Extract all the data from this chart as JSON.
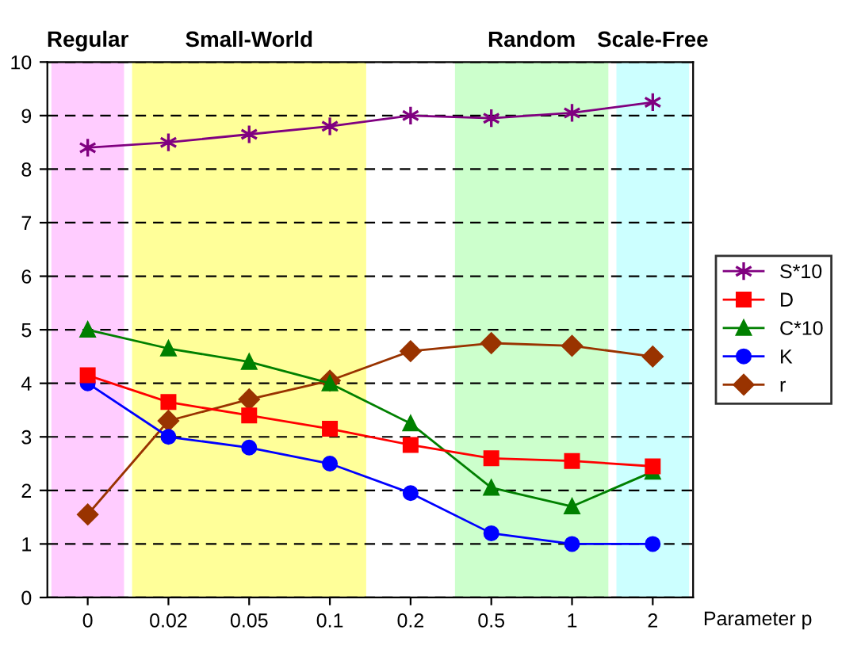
{
  "chart_data": {
    "type": "line",
    "xlabel": "Parameter p",
    "categories": [
      "0",
      "0.02",
      "0.05",
      "0.1",
      "0.2",
      "0.5",
      "1",
      "2"
    ],
    "series": [
      {
        "name": "S*10",
        "color": "#800080",
        "marker": "cross",
        "values": [
          8.4,
          8.5,
          8.65,
          8.8,
          9.0,
          8.95,
          9.05,
          9.25
        ]
      },
      {
        "name": "D",
        "color": "#ff0000",
        "marker": "square",
        "values": [
          4.15,
          3.65,
          3.4,
          3.15,
          2.85,
          2.6,
          2.55,
          2.45
        ]
      },
      {
        "name": "C*10",
        "color": "#008000",
        "marker": "triangle",
        "values": [
          5.0,
          4.65,
          4.4,
          4.0,
          3.25,
          2.05,
          1.7,
          2.35
        ]
      },
      {
        "name": "K",
        "color": "#0000ff",
        "marker": "circle",
        "values": [
          4.0,
          3.0,
          2.8,
          2.5,
          1.95,
          1.2,
          1.0,
          1.0
        ]
      },
      {
        "name": "r",
        "color": "#993300",
        "marker": "diamond",
        "values": [
          1.55,
          3.3,
          3.7,
          4.05,
          4.6,
          4.75,
          4.7,
          4.5
        ]
      }
    ],
    "bands": [
      {
        "axis": "x",
        "from": "0",
        "to": "0",
        "label": "Regular",
        "color": "#ffccff"
      },
      {
        "axis": "x",
        "from": "0.02",
        "to": "0.1",
        "label": "Small-World",
        "color": "#ffff99"
      },
      {
        "axis": "x",
        "from": "0.5",
        "to": "1",
        "label": "Random",
        "color": "#ccffcc"
      },
      {
        "axis": "x",
        "from": "2",
        "to": "2",
        "label": "Scale-Free",
        "color": "#ccffff"
      }
    ],
    "ylim": [
      0,
      10
    ],
    "yticks": [
      0,
      1,
      2,
      3,
      4,
      5,
      6,
      7,
      8,
      9,
      10
    ],
    "grid": "y",
    "legend": "right",
    "line_style": "solid"
  }
}
